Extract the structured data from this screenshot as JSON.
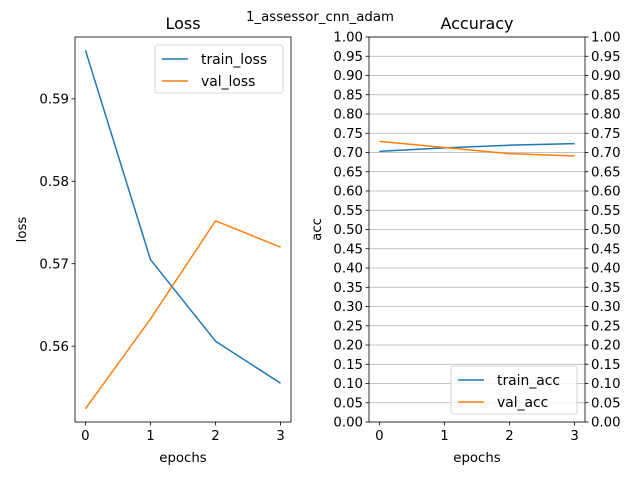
{
  "figure": {
    "suptitle": "1_assessor_cnn_adam"
  },
  "chart_data": [
    {
      "type": "line",
      "title": "Loss",
      "xlabel": "epochs",
      "ylabel": "loss",
      "x": [
        0,
        1,
        2,
        3
      ],
      "xticks": [
        "0",
        "1",
        "2",
        "3"
      ],
      "yticks": [
        "0.56",
        "0.57",
        "0.58",
        "0.59"
      ],
      "ylim": [
        0.5508,
        0.5975
      ],
      "grid": false,
      "legend_position": "upper-right",
      "series": [
        {
          "name": "train_loss",
          "color": "#1f77b4",
          "values": [
            0.5959,
            0.5705,
            0.5606,
            0.5555
          ]
        },
        {
          "name": "val_loss",
          "color": "#ff7f0e",
          "values": [
            0.5524,
            0.5633,
            0.5752,
            0.572
          ]
        }
      ]
    },
    {
      "type": "line",
      "title": "Accuracy",
      "xlabel": "epochs",
      "ylabel": "acc",
      "x": [
        0,
        1,
        2,
        3
      ],
      "xticks": [
        "0",
        "1",
        "2",
        "3"
      ],
      "yticks": [
        "0.00",
        "0.05",
        "0.10",
        "0.15",
        "0.20",
        "0.25",
        "0.30",
        "0.35",
        "0.40",
        "0.45",
        "0.50",
        "0.55",
        "0.60",
        "0.65",
        "0.70",
        "0.75",
        "0.80",
        "0.85",
        "0.90",
        "0.95",
        "1.00"
      ],
      "ylim": [
        0,
        1
      ],
      "grid": true,
      "secondary_y_axis": true,
      "legend_position": "lower-right",
      "series": [
        {
          "name": "train_acc",
          "color": "#1f77b4",
          "values": [
            0.703,
            0.712,
            0.719,
            0.723
          ]
        },
        {
          "name": "val_acc",
          "color": "#ff7f0e",
          "values": [
            0.729,
            0.713,
            0.697,
            0.691
          ]
        }
      ]
    }
  ]
}
